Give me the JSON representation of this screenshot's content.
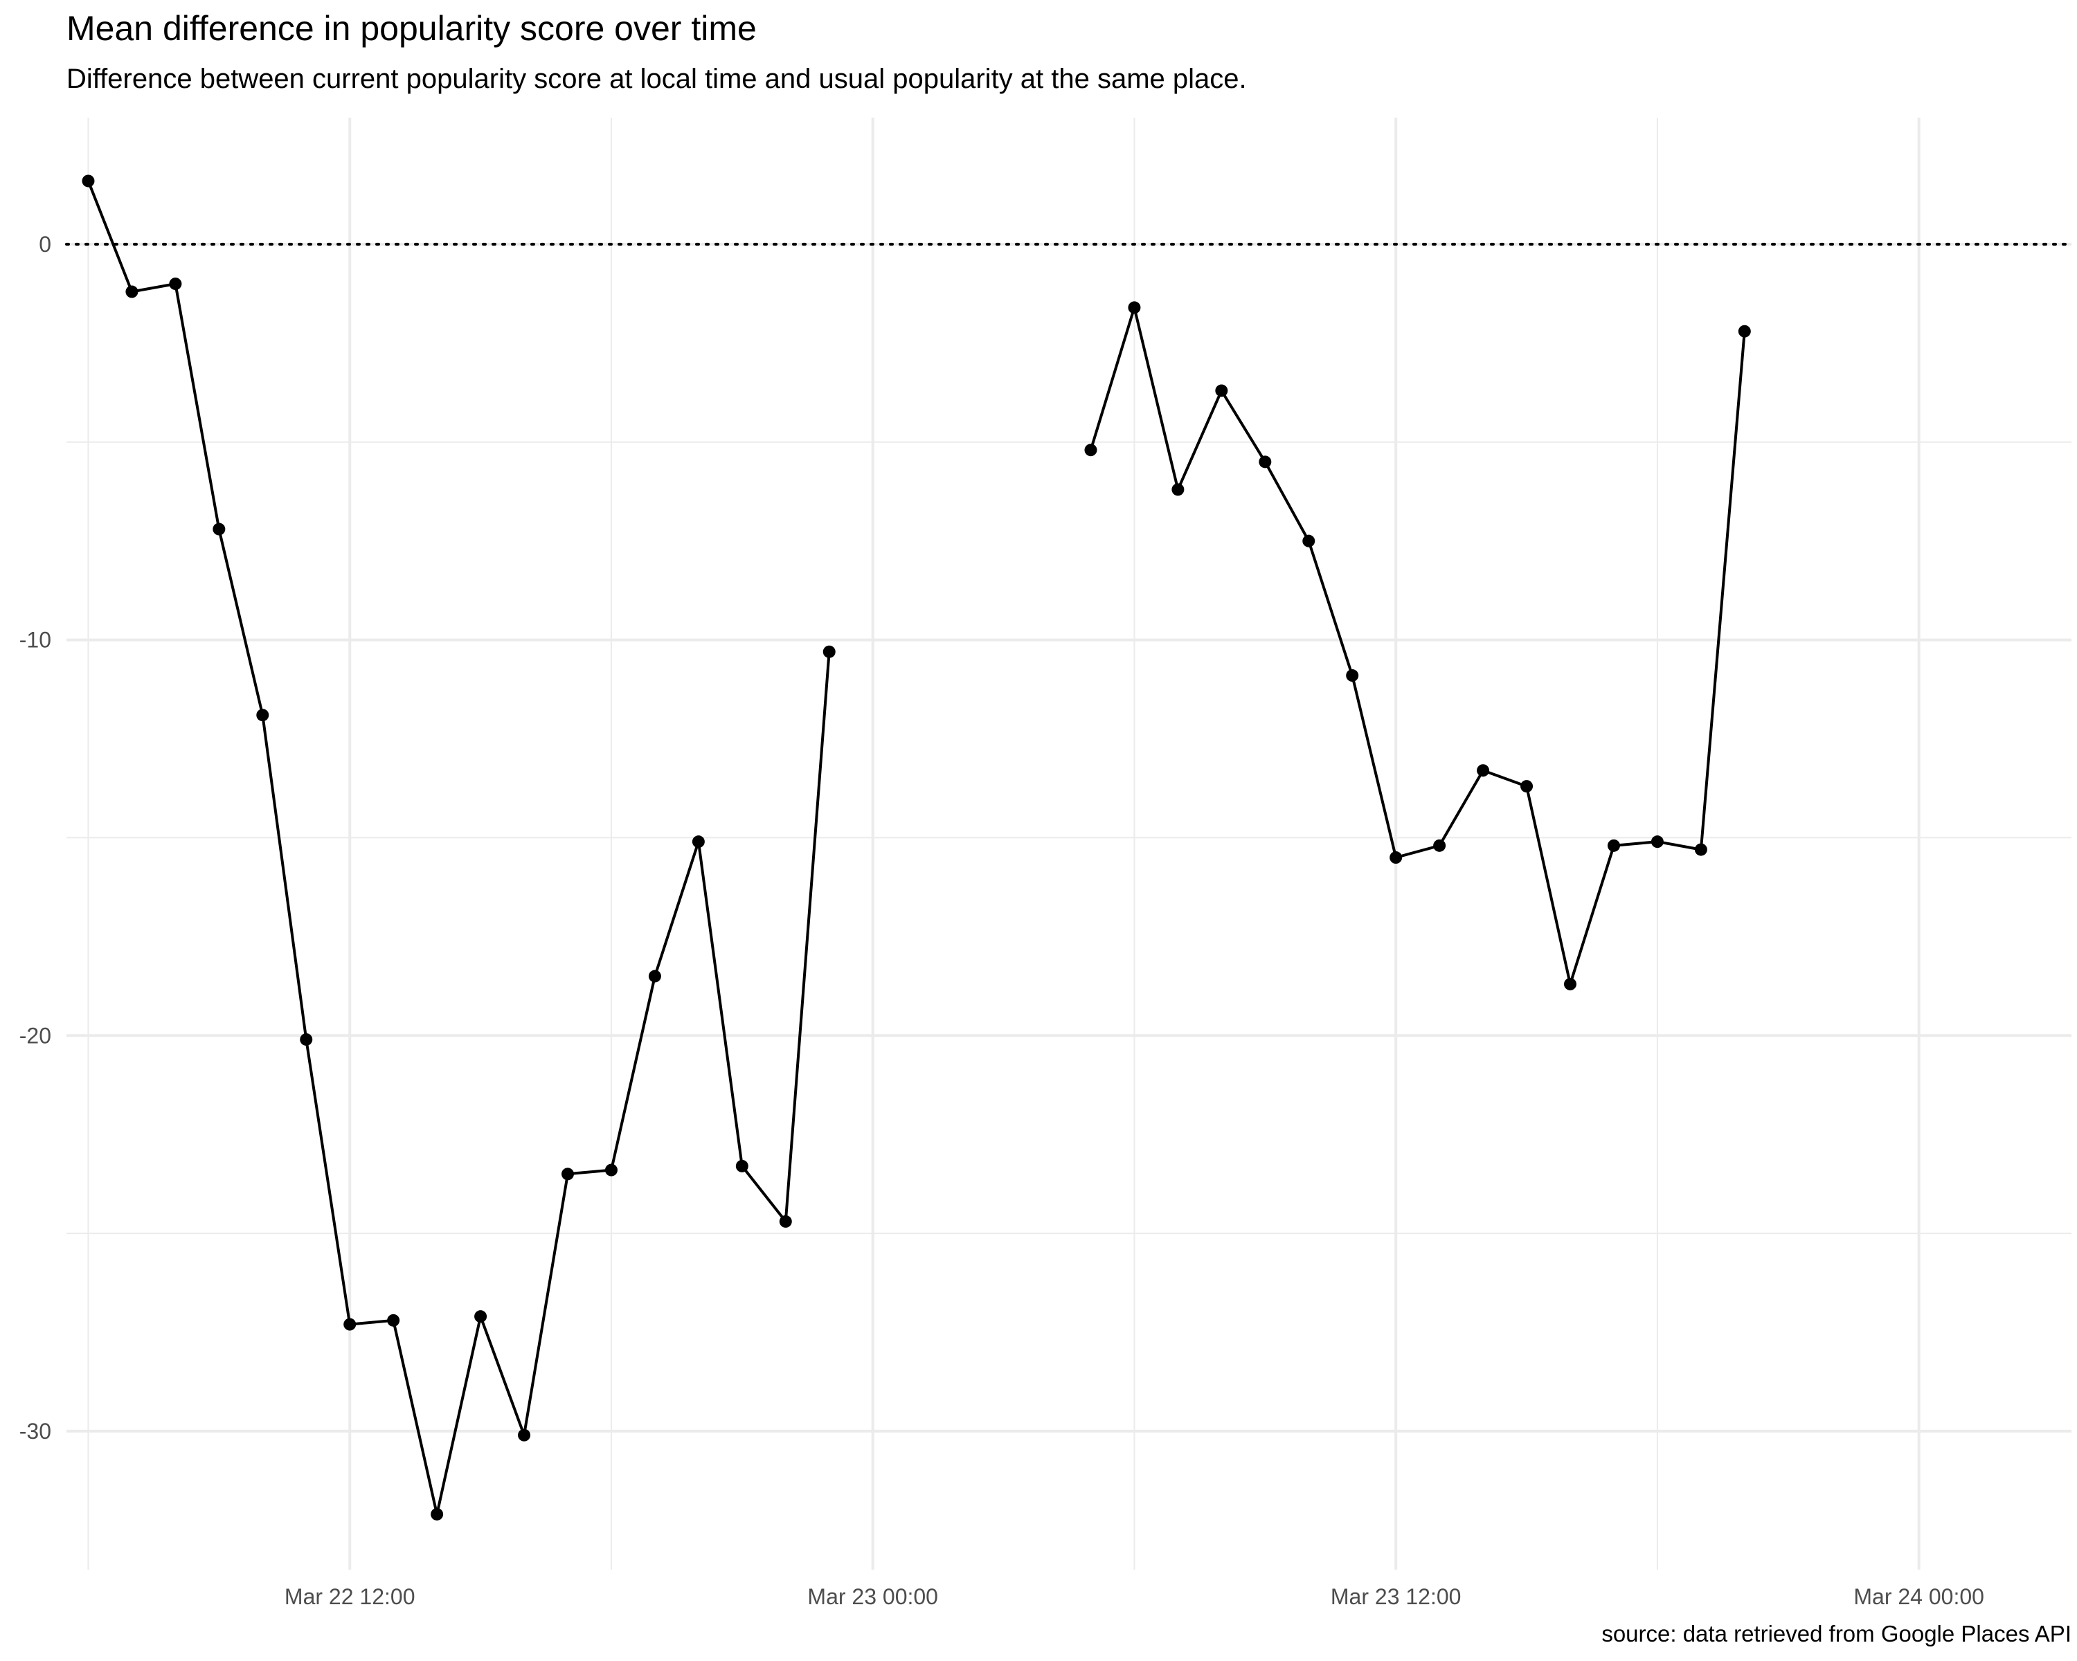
{
  "chart_data": {
    "type": "line",
    "title": "Mean difference in popularity score over time",
    "subtitle": "Difference between current popularity score at local time and usual popularity at the same place.",
    "caption": "source: data retrieved from Google Places API",
    "xlabel": "",
    "ylabel": "",
    "x_axis_type": "datetime",
    "xlim": [
      "2020-03-22T05:30",
      "2020-03-24T03:30"
    ],
    "ylim": [
      -33.5,
      3.2
    ],
    "x_ticks": [
      {
        "value": "2020-03-22T12:00",
        "label": "Mar 22 12:00"
      },
      {
        "value": "2020-03-23T00:00",
        "label": "Mar 23 00:00"
      },
      {
        "value": "2020-03-23T12:00",
        "label": "Mar 23 12:00"
      },
      {
        "value": "2020-03-24T00:00",
        "label": "Mar 24 00:00"
      }
    ],
    "x_minor_ticks": [
      "2020-03-22T06:00",
      "2020-03-22T18:00",
      "2020-03-23T06:00",
      "2020-03-23T18:00",
      "2020-03-24T06:00"
    ],
    "y_ticks": [
      0,
      -10,
      -20,
      -30
    ],
    "y_minor_ticks": [
      -5,
      -15,
      -25
    ],
    "reference_line": {
      "y": 0,
      "style": "dotted"
    },
    "grid": true,
    "colors": {
      "line": "#000000",
      "grid": "#ebebeb",
      "reference": "#000000"
    },
    "series": [
      {
        "segments": [
          {
            "x": [
              "2020-03-22T06:00",
              "2020-03-22T07:00",
              "2020-03-22T08:00",
              "2020-03-22T09:00",
              "2020-03-22T10:00",
              "2020-03-22T11:00",
              "2020-03-22T12:00",
              "2020-03-22T13:00",
              "2020-03-22T14:00",
              "2020-03-22T15:00",
              "2020-03-22T16:00",
              "2020-03-22T17:00",
              "2020-03-22T18:00",
              "2020-03-22T19:00",
              "2020-03-22T20:00",
              "2020-03-22T21:00",
              "2020-03-22T22:00",
              "2020-03-22T23:00"
            ],
            "y": [
              1.6,
              -1.2,
              -1.0,
              -7.2,
              -11.9,
              -20.1,
              -27.3,
              -27.2,
              -32.1,
              -27.1,
              -30.1,
              -23.5,
              -23.4,
              -18.5,
              -15.1,
              -23.3,
              -24.7,
              -10.3
            ]
          },
          {
            "x": [
              "2020-03-23T05:00",
              "2020-03-23T06:00",
              "2020-03-23T07:00",
              "2020-03-23T08:00",
              "2020-03-23T09:00",
              "2020-03-23T10:00",
              "2020-03-23T11:00",
              "2020-03-23T12:00",
              "2020-03-23T13:00",
              "2020-03-23T14:00",
              "2020-03-23T15:00",
              "2020-03-23T16:00",
              "2020-03-23T17:00",
              "2020-03-23T18:00",
              "2020-03-23T19:00",
              "2020-03-23T20:00"
            ],
            "y": [
              -5.2,
              -1.6,
              -6.2,
              -3.7,
              -5.5,
              -7.5,
              -10.9,
              -15.5,
              -15.2,
              -13.3,
              -13.7,
              -18.7,
              -15.2,
              -15.1,
              -15.3,
              -2.2
            ]
          }
        ]
      }
    ]
  }
}
